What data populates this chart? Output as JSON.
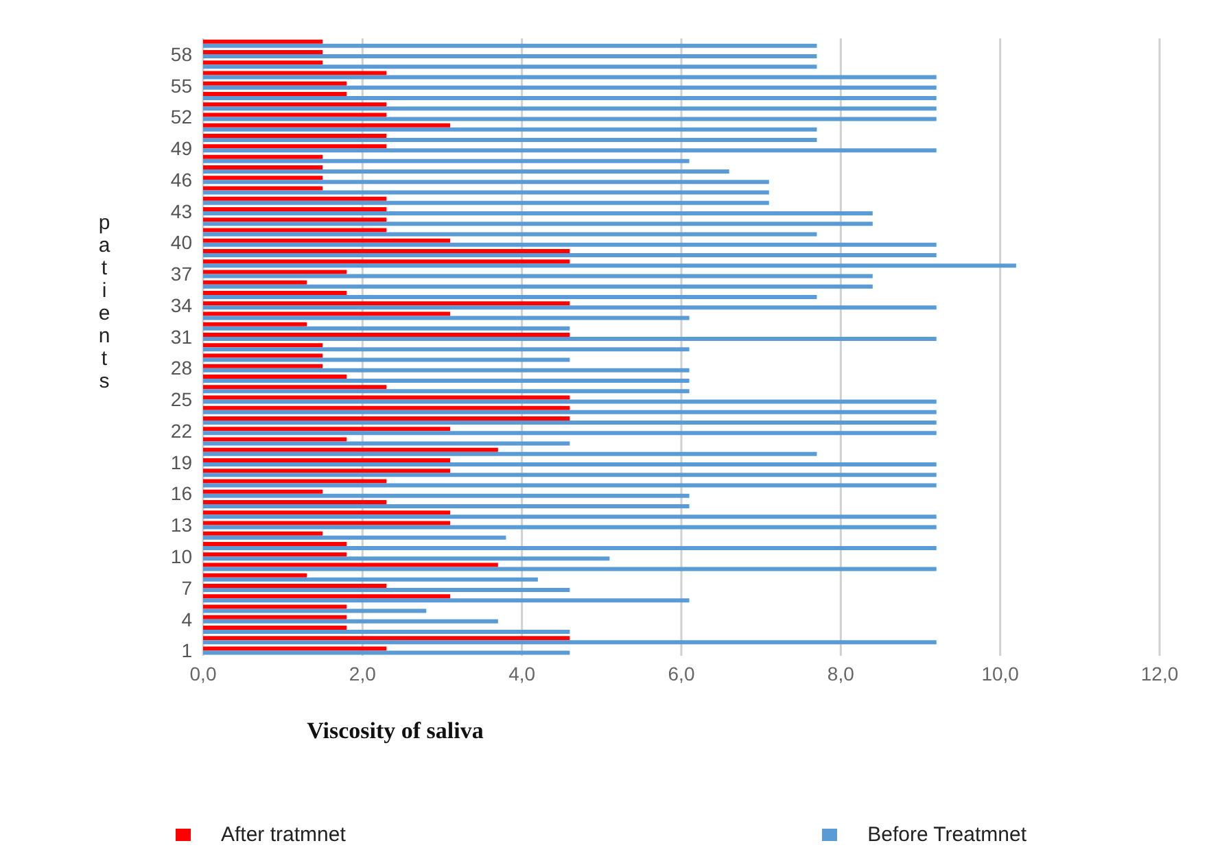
{
  "chart_data": {
    "type": "bar",
    "orientation": "horizontal",
    "xlabel": "Viscosity of saliva",
    "ylabel": "patients",
    "categories": [
      null,
      "58",
      null,
      null,
      "55",
      null,
      null,
      "52",
      null,
      null,
      "49",
      null,
      null,
      "46",
      null,
      null,
      "43",
      null,
      null,
      "40",
      null,
      null,
      "37",
      null,
      null,
      "34",
      null,
      null,
      "31",
      null,
      null,
      "28",
      null,
      null,
      "25",
      null,
      null,
      "22",
      null,
      null,
      "19",
      null,
      null,
      "16",
      null,
      null,
      "13",
      null,
      null,
      "10",
      null,
      null,
      "7",
      null,
      null,
      "4",
      null,
      null,
      "1"
    ],
    "series": [
      {
        "name": "After tratmnet",
        "color": "#ff0000",
        "values": [
          1.5,
          1.5,
          1.5,
          2.3,
          1.8,
          1.8,
          2.3,
          2.3,
          3.1,
          2.3,
          2.3,
          1.5,
          1.5,
          1.5,
          1.5,
          2.3,
          2.3,
          2.3,
          2.3,
          3.1,
          4.6,
          4.6,
          1.8,
          1.3,
          1.8,
          4.6,
          3.1,
          1.3,
          4.6,
          1.5,
          1.5,
          1.5,
          1.8,
          2.3,
          4.6,
          4.6,
          4.6,
          3.1,
          1.8,
          3.7,
          3.1,
          3.1,
          2.3,
          1.5,
          2.3,
          3.1,
          3.1,
          1.5,
          1.8,
          1.8,
          3.7,
          1.3,
          2.3,
          3.1,
          1.8,
          1.8,
          1.8,
          4.6,
          2.3
        ]
      },
      {
        "name": "Before Treatmnet",
        "color": "#5b9bd5",
        "values": [
          7.7,
          7.7,
          7.7,
          9.2,
          9.2,
          9.2,
          9.2,
          9.2,
          7.7,
          7.7,
          9.2,
          6.1,
          6.6,
          7.1,
          7.1,
          7.1,
          8.4,
          8.4,
          7.7,
          9.2,
          9.2,
          10.2,
          8.4,
          8.4,
          7.7,
          9.2,
          6.1,
          4.6,
          9.2,
          6.1,
          4.6,
          6.1,
          6.1,
          6.1,
          9.2,
          9.2,
          9.2,
          9.2,
          4.6,
          7.7,
          9.2,
          9.2,
          9.2,
          6.1,
          6.1,
          9.2,
          9.2,
          3.8,
          9.2,
          5.1,
          9.2,
          4.2,
          4.6,
          6.1,
          2.8,
          3.7,
          4.6,
          9.2,
          4.6
        ]
      }
    ],
    "xlim": [
      0,
      12
    ],
    "xticks": [
      {
        "value": 0,
        "label": "0,0"
      },
      {
        "value": 2,
        "label": "2,0"
      },
      {
        "value": 4,
        "label": "4,0"
      },
      {
        "value": 6,
        "label": "6,0"
      },
      {
        "value": 8,
        "label": "8,0"
      },
      {
        "value": 10,
        "label": "10,0"
      },
      {
        "value": 12,
        "label": "12,0"
      }
    ],
    "grid": "x",
    "legend": "bottom"
  }
}
